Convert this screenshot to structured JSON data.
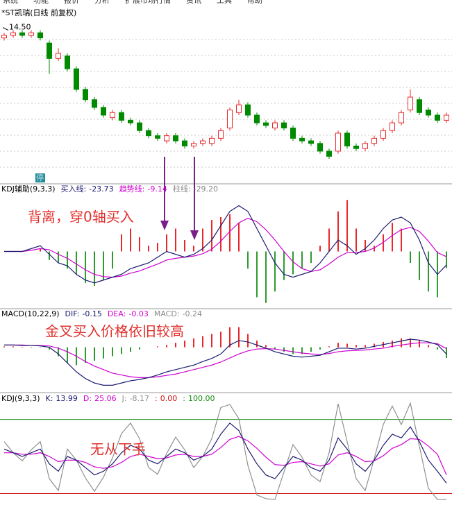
{
  "menu": [
    "系统",
    "功能",
    "报价",
    "分析",
    "扩展市场行情",
    "资讯",
    "工具",
    "帮助"
  ],
  "chart_data": [
    {
      "type": "candlestick",
      "title": "*ST凯瑞(日线 前复权)",
      "up_color": "#e8282b",
      "down_color": "#008a00",
      "ylim": [
        8.8,
        15
      ],
      "open": [
        14.2,
        14.3,
        14.4,
        14.3,
        14.4,
        14.0,
        13.4,
        13.5,
        13.0,
        12.2,
        11.8,
        11.5,
        11.1,
        11.3,
        11.0,
        10.9,
        10.6,
        10.4,
        10.2,
        10.4,
        10.2,
        10.0,
        10.1,
        10.1,
        10.3,
        10.7,
        11.3,
        11.6,
        11.2,
        10.9,
        10.7,
        10.9,
        10.7,
        10.3,
        10.2,
        10.1,
        9.8,
        9.8,
        10.5,
        10.0,
        9.9,
        10.1,
        10.3,
        10.6,
        10.9,
        11.4,
        11.8,
        11.4,
        11.2,
        11.0
      ],
      "close": [
        14.3,
        14.4,
        14.3,
        14.4,
        14.2,
        13.4,
        13.6,
        13.0,
        12.2,
        11.8,
        11.5,
        11.2,
        11.3,
        11.0,
        10.9,
        10.6,
        10.4,
        10.3,
        10.4,
        10.2,
        10.0,
        10.1,
        10.2,
        10.3,
        10.6,
        11.4,
        11.6,
        11.2,
        10.9,
        10.8,
        10.9,
        10.7,
        10.3,
        10.2,
        10.1,
        9.8,
        9.6,
        10.5,
        10.0,
        9.9,
        10.1,
        10.3,
        10.6,
        10.9,
        11.3,
        11.9,
        11.3,
        11.2,
        11.0,
        11.2
      ],
      "high": [
        14.4,
        14.5,
        14.5,
        14.5,
        14.5,
        14.1,
        13.8,
        13.6,
        13.1,
        12.3,
        11.9,
        11.6,
        11.4,
        11.4,
        11.1,
        11.0,
        10.7,
        10.5,
        10.5,
        10.5,
        10.3,
        10.2,
        10.3,
        10.4,
        10.7,
        11.5,
        11.8,
        11.7,
        11.3,
        11.0,
        11.0,
        11.0,
        10.8,
        10.4,
        10.3,
        10.2,
        9.9,
        10.6,
        10.6,
        10.1,
        10.2,
        10.4,
        10.7,
        11.0,
        11.4,
        12.2,
        11.9,
        11.5,
        11.3,
        11.3
      ],
      "low": [
        14.1,
        14.2,
        14.2,
        14.2,
        14.1,
        12.8,
        13.3,
        12.9,
        12.1,
        11.7,
        11.4,
        11.1,
        11.0,
        10.9,
        10.8,
        10.5,
        10.3,
        10.2,
        10.1,
        10.1,
        9.9,
        9.9,
        10.0,
        10.0,
        10.2,
        10.6,
        11.2,
        11.1,
        10.8,
        10.7,
        10.6,
        10.6,
        10.2,
        10.1,
        10.0,
        9.7,
        9.5,
        9.7,
        9.9,
        9.8,
        9.8,
        10.0,
        10.2,
        10.5,
        10.8,
        11.3,
        11.2,
        11.1,
        10.9,
        10.9
      ],
      "high_marker": {
        "value": 14.5,
        "label": "14.50"
      },
      "halt_marker": "停"
    },
    {
      "type": "indicator",
      "title": "KDJ辅助(9,3,3)",
      "ylim": [
        -100,
        100
      ],
      "annotation": "背离，穿0轴买入",
      "series": [
        {
          "name": "买入线:",
          "color": "#1a1a70",
          "values": [
            0,
            0,
            0,
            5,
            10,
            -5,
            -20,
            -25,
            -40,
            -50,
            -55,
            -50,
            -45,
            -40,
            -30,
            -25,
            -20,
            -10,
            0,
            -5,
            -10,
            -5,
            5,
            20,
            45,
            70,
            80,
            70,
            40,
            10,
            -20,
            -40,
            -45,
            -40,
            -35,
            -20,
            0,
            20,
            10,
            -5,
            5,
            20,
            40,
            55,
            60,
            50,
            20,
            -20,
            -40,
            -23.73
          ]
        },
        {
          "name": "趋势线:",
          "color": "#d000d0",
          "values": [
            0,
            0,
            0,
            2,
            5,
            3,
            -5,
            -12,
            -22,
            -32,
            -40,
            -44,
            -45,
            -43,
            -38,
            -34,
            -28,
            -22,
            -15,
            -12,
            -10,
            -8,
            -4,
            4,
            18,
            35,
            50,
            58,
            52,
            38,
            20,
            0,
            -18,
            -30,
            -35,
            -32,
            -22,
            -10,
            -2,
            -2,
            0,
            6,
            16,
            28,
            38,
            42,
            35,
            18,
            -2,
            -9.14
          ]
        }
      ],
      "bars": {
        "name": "柱线:",
        "color": "#888888",
        "up_color": "#e8282b",
        "down_color": "#2e9a2e",
        "value_label": "-29.20",
        "values": [
          0,
          0,
          0,
          0,
          5,
          -15,
          -20,
          -30,
          -40,
          -55,
          -60,
          -50,
          -30,
          30,
          40,
          25,
          10,
          15,
          30,
          40,
          20,
          10,
          40,
          55,
          60,
          65,
          50,
          -30,
          -80,
          -90,
          -70,
          -50,
          -40,
          -30,
          -20,
          10,
          40,
          70,
          90,
          40,
          20,
          10,
          30,
          50,
          40,
          -20,
          -50,
          -70,
          -80,
          -29.2
        ]
      }
    },
    {
      "type": "indicator",
      "title": "MACD(10,22,9)",
      "ylim": [
        -1,
        0.6
      ],
      "annotation": "金叉买入价格依旧较高",
      "series": [
        {
          "name": "DIF:",
          "color": "#1a1a70",
          "values": [
            0.05,
            0.05,
            0.04,
            0.04,
            0.03,
            0,
            -0.15,
            -0.35,
            -0.55,
            -0.7,
            -0.8,
            -0.85,
            -0.85,
            -0.8,
            -0.75,
            -0.72,
            -0.68,
            -0.62,
            -0.55,
            -0.5,
            -0.45,
            -0.4,
            -0.32,
            -0.25,
            -0.15,
            0.05,
            0.15,
            0.12,
            0.05,
            -0.02,
            -0.1,
            -0.15,
            -0.2,
            -0.22,
            -0.2,
            -0.18,
            -0.1,
            -0.02,
            -0.02,
            -0.04,
            -0.02,
            0.02,
            0.06,
            0.1,
            0.14,
            0.18,
            0.16,
            0.12,
            0.06,
            -0.15
          ]
        },
        {
          "name": "DEA:",
          "color": "#d000d0",
          "values": [
            0.05,
            0.05,
            0.05,
            0.04,
            0.04,
            0.03,
            -0.02,
            -0.1,
            -0.2,
            -0.32,
            -0.42,
            -0.5,
            -0.58,
            -0.62,
            -0.66,
            -0.68,
            -0.68,
            -0.66,
            -0.63,
            -0.6,
            -0.55,
            -0.5,
            -0.45,
            -0.4,
            -0.33,
            -0.24,
            -0.15,
            -0.08,
            -0.04,
            -0.03,
            -0.04,
            -0.07,
            -0.1,
            -0.13,
            -0.15,
            -0.16,
            -0.14,
            -0.1,
            -0.08,
            -0.07,
            -0.06,
            -0.04,
            -0.02,
            0.02,
            0.05,
            0.08,
            0.1,
            0.1,
            0.08,
            -0.03
          ]
        }
      ],
      "bars": {
        "name": "MACD:",
        "color": "#888888",
        "up_color": "#e8282b",
        "down_color": "#2e9a2e",
        "values": [
          0.02,
          0.02,
          0.01,
          0.01,
          0.01,
          -0.05,
          -0.2,
          -0.35,
          -0.4,
          -0.35,
          -0.3,
          -0.25,
          -0.2,
          -0.15,
          -0.1,
          -0.05,
          0,
          0.02,
          0.05,
          0.1,
          0.15,
          0.2,
          0.25,
          0.3,
          0.35,
          0.45,
          0.45,
          0.3,
          0.15,
          0.05,
          -0.05,
          -0.1,
          -0.15,
          -0.15,
          -0.1,
          -0.05,
          0.02,
          0.1,
          0.08,
          0.05,
          0.05,
          0.08,
          0.12,
          0.15,
          0.2,
          0.2,
          0.15,
          0.05,
          -0.05,
          -0.24
        ]
      }
    },
    {
      "type": "indicator",
      "title": "KDJ(9,3,3)",
      "ylim": [
        -8,
        123
      ],
      "annotation": "无从下手",
      "series": [
        {
          "name": "K:",
          "color": "#1a1a70",
          "values": [
            60,
            55,
            50,
            55,
            60,
            40,
            30,
            50,
            45,
            35,
            25,
            30,
            40,
            55,
            65,
            60,
            45,
            40,
            50,
            60,
            55,
            45,
            50,
            60,
            80,
            95,
            85,
            60,
            40,
            25,
            20,
            35,
            50,
            45,
            35,
            30,
            45,
            75,
            60,
            40,
            30,
            45,
            65,
            80,
            75,
            90,
            70,
            45,
            30,
            13.99
          ]
        },
        {
          "name": "D:",
          "color": "#d000d0",
          "values": [
            55,
            55,
            53,
            53,
            55,
            50,
            43,
            45,
            45,
            42,
            36,
            34,
            36,
            42,
            50,
            53,
            50,
            47,
            48,
            52,
            53,
            50,
            50,
            53,
            62,
            73,
            77,
            71,
            61,
            49,
            39,
            38,
            42,
            43,
            40,
            37,
            40,
            52,
            55,
            50,
            43,
            44,
            51,
            61,
            66,
            74,
            73,
            64,
            53,
            25.06
          ]
        },
        {
          "name": "J:",
          "color": "#909090",
          "values": [
            70,
            55,
            44,
            59,
            70,
            20,
            4,
            60,
            45,
            21,
            3,
            22,
            48,
            81,
            95,
            74,
            35,
            26,
            54,
            76,
            59,
            35,
            50,
            74,
            116,
            120,
            101,
            38,
            -2,
            -7,
            -8,
            29,
            66,
            49,
            25,
            16,
            55,
            121,
            70,
            20,
            4,
            47,
            93,
            118,
            93,
            122,
            64,
            7,
            -8,
            -8.17
          ]
        }
      ],
      "ref_lines": [
        {
          "name": ":",
          "value": 0,
          "label": "0.00",
          "color": "#d01010"
        },
        {
          "name": ":",
          "value": 100,
          "label": "100.00",
          "color": "#108a10"
        }
      ]
    }
  ]
}
